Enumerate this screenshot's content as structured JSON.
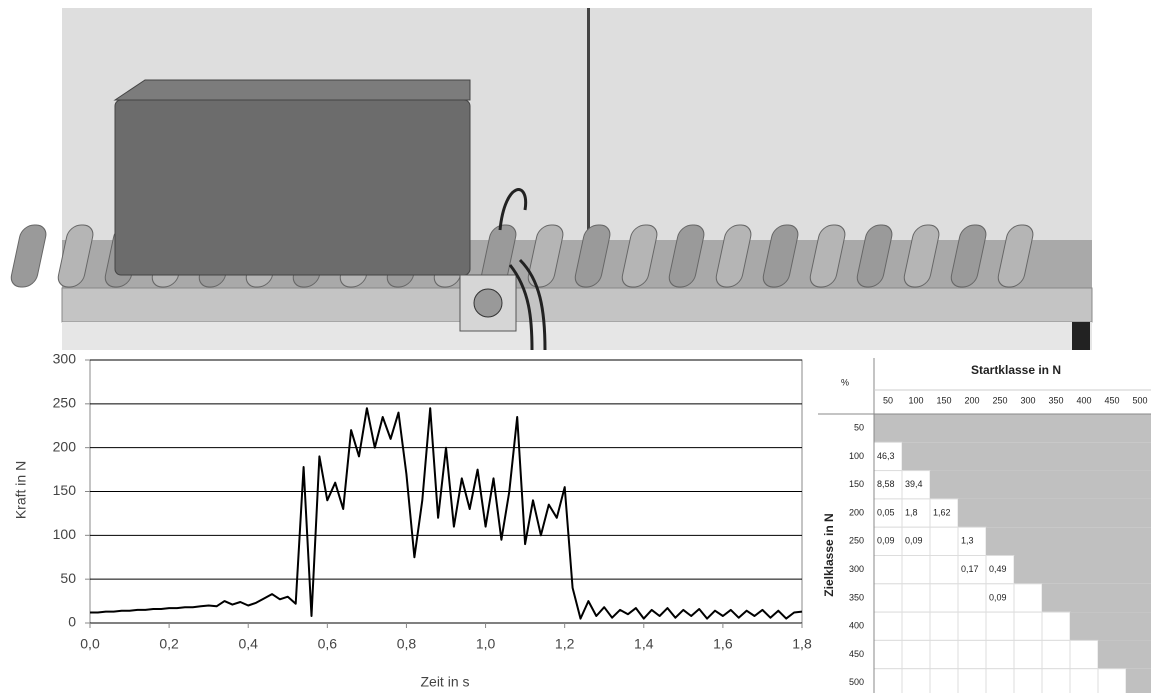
{
  "chart_data": {
    "type": "line",
    "color": "#000000",
    "xlabel": "Zeit in s",
    "ylabel": "Kraft in N",
    "x": [
      0,
      0.02,
      0.04,
      0.06,
      0.08,
      0.1,
      0.12,
      0.14,
      0.16,
      0.18,
      0.2,
      0.22,
      0.24,
      0.26,
      0.28,
      0.3,
      0.32,
      0.34,
      0.36,
      0.38,
      0.4,
      0.42,
      0.44,
      0.46,
      0.48,
      0.5,
      0.52,
      0.54,
      0.56,
      0.58,
      0.6,
      0.62,
      0.64,
      0.66,
      0.68,
      0.7,
      0.72,
      0.74,
      0.76,
      0.78,
      0.8,
      0.82,
      0.84,
      0.86,
      0.88,
      0.9,
      0.92,
      0.94,
      0.96,
      0.98,
      1.0,
      1.02,
      1.04,
      1.06,
      1.08,
      1.1,
      1.12,
      1.14,
      1.16,
      1.18,
      1.2,
      1.22,
      1.24,
      1.26,
      1.28,
      1.3,
      1.32,
      1.34,
      1.36,
      1.38,
      1.4,
      1.42,
      1.44,
      1.46,
      1.48,
      1.5,
      1.52,
      1.54,
      1.56,
      1.58,
      1.6,
      1.62,
      1.64,
      1.66,
      1.68,
      1.7,
      1.72,
      1.74,
      1.76,
      1.78,
      1.8
    ],
    "values": [
      12,
      12,
      13,
      13,
      14,
      14,
      15,
      15,
      16,
      16,
      17,
      17,
      18,
      18,
      19,
      20,
      19,
      25,
      21,
      24,
      20,
      23,
      28,
      33,
      27,
      30,
      22,
      178,
      8,
      190,
      140,
      160,
      130,
      220,
      190,
      245,
      200,
      235,
      210,
      240,
      170,
      75,
      140,
      245,
      120,
      200,
      110,
      165,
      130,
      175,
      110,
      165,
      95,
      150,
      235,
      90,
      140,
      100,
      135,
      120,
      155,
      40,
      5,
      25,
      8,
      18,
      6,
      15,
      10,
      17,
      5,
      15,
      8,
      17,
      6,
      15,
      8,
      16,
      5,
      14,
      8,
      15,
      6,
      14,
      8,
      15,
      6,
      14,
      5,
      12,
      13
    ],
    "xlim": [
      0,
      1.8
    ],
    "xticks": [
      {
        "value": 0,
        "label": "0,0"
      },
      {
        "value": 0.2,
        "label": "0,2"
      },
      {
        "value": 0.4,
        "label": "0,4"
      },
      {
        "value": 0.6,
        "label": "0,6"
      },
      {
        "value": 0.8,
        "label": "0,8"
      },
      {
        "value": 1.0,
        "label": "1,0"
      },
      {
        "value": 1.2,
        "label": "1,2"
      },
      {
        "value": 1.4,
        "label": "1,4"
      },
      {
        "value": 1.6,
        "label": "1,6"
      },
      {
        "value": 1.8,
        "label": "1,8"
      }
    ],
    "ylim": [
      0,
      300
    ],
    "yticks": [
      0,
      50,
      100,
      150,
      200,
      250,
      300
    ],
    "grid": true
  },
  "table": {
    "corner": "%",
    "column_title": "Startklasse in N",
    "row_title": "Zielklasse in N",
    "columns": [
      50,
      100,
      150,
      200,
      250,
      300,
      350,
      400,
      450,
      500
    ],
    "row_labels": [
      50,
      100,
      150,
      200,
      250,
      300,
      350,
      400,
      450,
      500
    ],
    "cells": [
      [
        null,
        null,
        null,
        null,
        null,
        null,
        null,
        null,
        null,
        null
      ],
      [
        "46,3",
        null,
        null,
        null,
        null,
        null,
        null,
        null,
        null,
        null
      ],
      [
        "8,58",
        "39,4",
        null,
        null,
        null,
        null,
        null,
        null,
        null,
        null
      ],
      [
        "0,05",
        "1,8",
        "1,62",
        null,
        null,
        null,
        null,
        null,
        null,
        null
      ],
      [
        "0,09",
        "0,09",
        null,
        "1,3",
        null,
        null,
        null,
        null,
        null,
        null
      ],
      [
        null,
        null,
        null,
        "0,17",
        "0,49",
        null,
        null,
        null,
        null,
        null
      ],
      [
        null,
        null,
        null,
        null,
        "0,09",
        null,
        null,
        null,
        null,
        null
      ],
      [
        null,
        null,
        null,
        null,
        null,
        null,
        null,
        null,
        null,
        null
      ],
      [
        null,
        null,
        null,
        null,
        null,
        null,
        null,
        null,
        null,
        null
      ],
      [
        null,
        null,
        null,
        null,
        null,
        null,
        null,
        null,
        null,
        null
      ]
    ]
  }
}
